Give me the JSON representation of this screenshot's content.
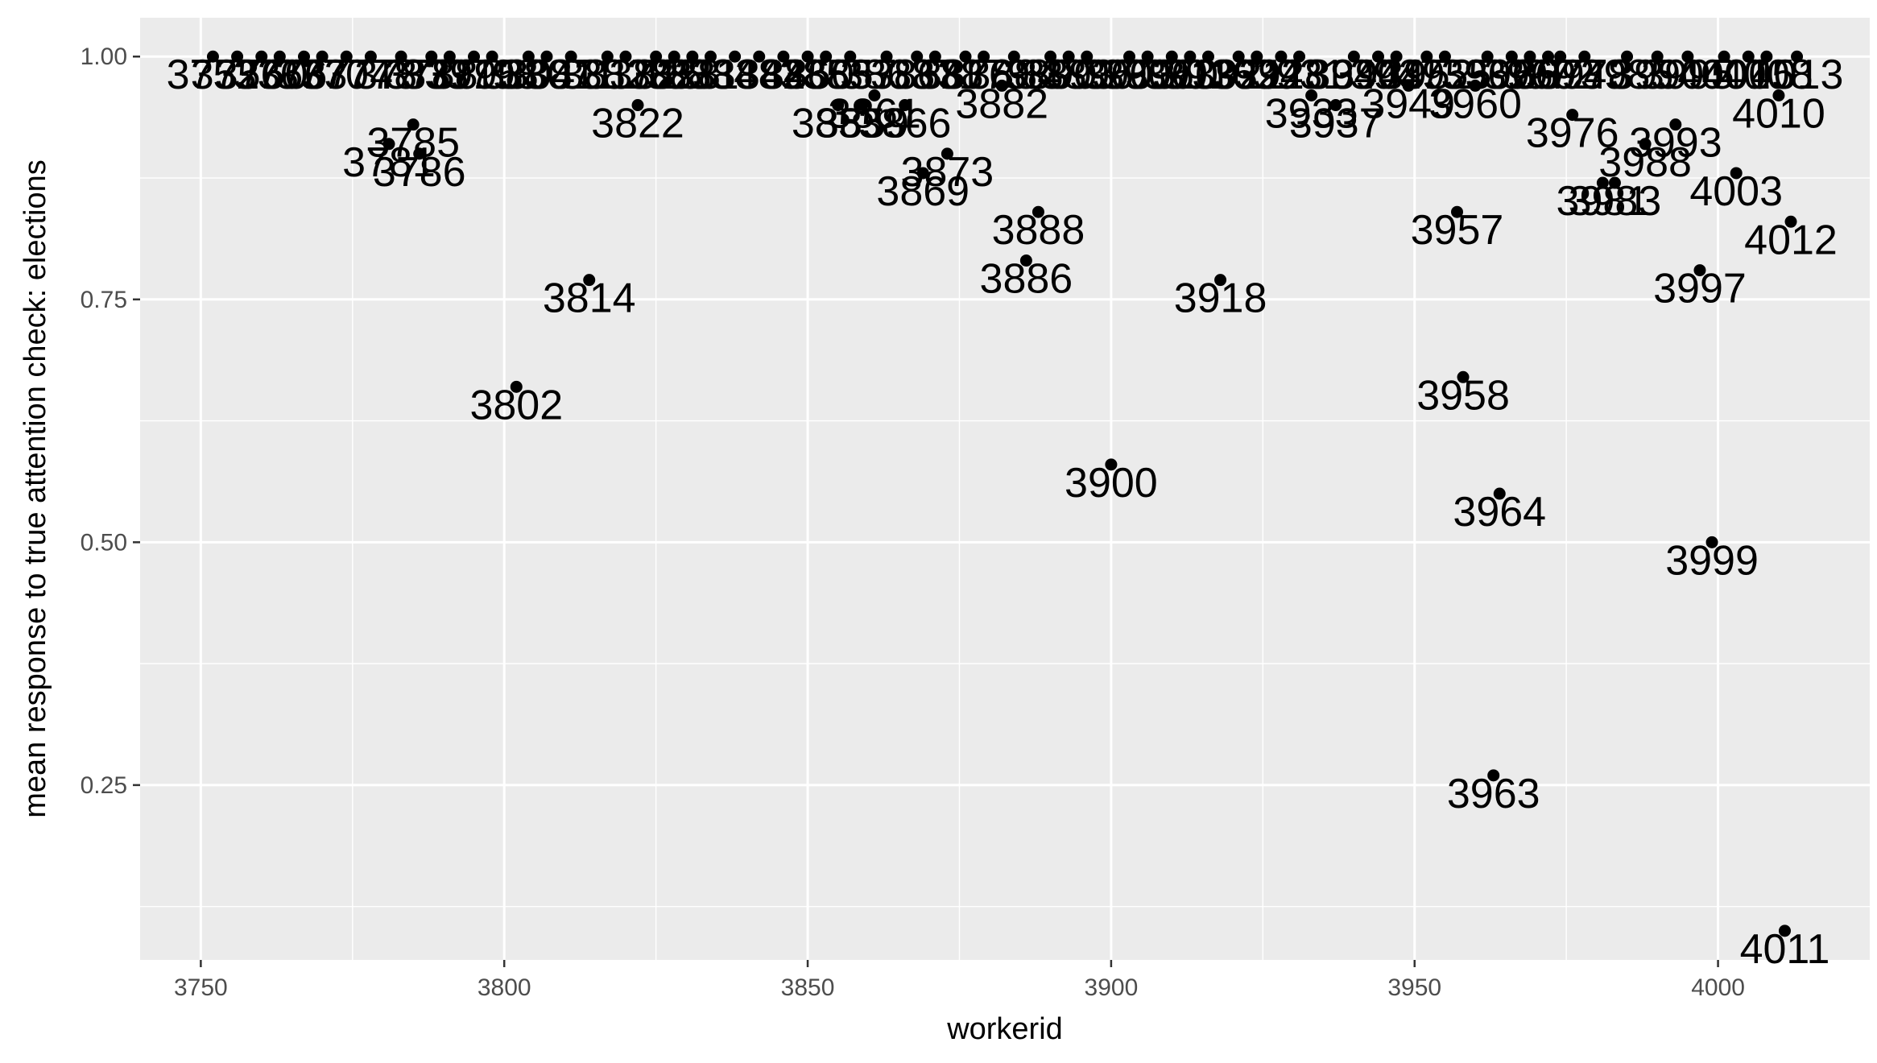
{
  "chart_data": {
    "type": "scatter",
    "title": "",
    "xlabel": "workerid",
    "ylabel": "mean response to true attention check:  elections",
    "xlim": [
      3740,
      4025
    ],
    "ylim": [
      0.07,
      1.04
    ],
    "x_ticks": [
      3750,
      3800,
      3850,
      3900,
      3950,
      4000
    ],
    "x_tick_labels": [
      "3750",
      "3800",
      "3850",
      "3900",
      "3950",
      "4000"
    ],
    "y_ticks": [
      0.25,
      0.5,
      0.75,
      1.0
    ],
    "y_tick_labels": [
      "0.25",
      "0.50",
      "0.75",
      "1.00"
    ],
    "grid": true,
    "point_color": "#000000",
    "panel_color": "#ebebeb",
    "points": [
      {
        "x": 4011,
        "y": 0.1,
        "label": "4011"
      },
      {
        "x": 3963,
        "y": 0.26,
        "label": "3963"
      },
      {
        "x": 3999,
        "y": 0.5,
        "label": "3999"
      },
      {
        "x": 3964,
        "y": 0.55,
        "label": "3964"
      },
      {
        "x": 3900,
        "y": 0.58,
        "label": "3900"
      },
      {
        "x": 3958,
        "y": 0.67,
        "label": "3958"
      },
      {
        "x": 3802,
        "y": 0.66,
        "label": "3802"
      },
      {
        "x": 3814,
        "y": 0.77,
        "label": "3814"
      },
      {
        "x": 3918,
        "y": 0.77,
        "label": "3918"
      },
      {
        "x": 3997,
        "y": 0.78,
        "label": "3997"
      },
      {
        "x": 3886,
        "y": 0.79,
        "label": "3886"
      },
      {
        "x": 4012,
        "y": 0.83,
        "label": "4012"
      },
      {
        "x": 3888,
        "y": 0.84,
        "label": "3888"
      },
      {
        "x": 3957,
        "y": 0.84,
        "label": "3957"
      },
      {
        "x": 4003,
        "y": 0.88,
        "label": "4003"
      },
      {
        "x": 3869,
        "y": 0.88,
        "label": "3869"
      },
      {
        "x": 3873,
        "y": 0.9,
        "label": "3873"
      },
      {
        "x": 3981,
        "y": 0.87,
        "label": "3981"
      },
      {
        "x": 3983,
        "y": 0.87,
        "label": "3983"
      },
      {
        "x": 3988,
        "y": 0.91,
        "label": "3988"
      },
      {
        "x": 3993,
        "y": 0.93,
        "label": "3993"
      },
      {
        "x": 3976,
        "y": 0.94,
        "label": "3976"
      },
      {
        "x": 4010,
        "y": 0.96,
        "label": "4010"
      },
      {
        "x": 3781,
        "y": 0.91,
        "label": "3781"
      },
      {
        "x": 3786,
        "y": 0.9,
        "label": "3786"
      },
      {
        "x": 3785,
        "y": 0.93,
        "label": "3785"
      },
      {
        "x": 3822,
        "y": 0.95,
        "label": "3822"
      },
      {
        "x": 3866,
        "y": 0.95,
        "label": "3866"
      },
      {
        "x": 3882,
        "y": 0.97,
        "label": "3882"
      },
      {
        "x": 3855,
        "y": 0.95,
        "label": "3855"
      },
      {
        "x": 3859,
        "y": 0.95,
        "label": "3859"
      },
      {
        "x": 3861,
        "y": 0.96,
        "label": "3861"
      },
      {
        "x": 3937,
        "y": 0.95,
        "label": "3937"
      },
      {
        "x": 3933,
        "y": 0.96,
        "label": "3933"
      },
      {
        "x": 3949,
        "y": 0.97,
        "label": "3949"
      },
      {
        "x": 3960,
        "y": 0.97,
        "label": "3960"
      },
      {
        "x": 3752,
        "y": 1.0,
        "label": "3752"
      },
      {
        "x": 3756,
        "y": 1.0,
        "label": "3756"
      },
      {
        "x": 3760,
        "y": 1.0,
        "label": "3760"
      },
      {
        "x": 3763,
        "y": 1.0,
        "label": "3763"
      },
      {
        "x": 3767,
        "y": 1.0,
        "label": "3767"
      },
      {
        "x": 3770,
        "y": 1.0,
        "label": "3770"
      },
      {
        "x": 3774,
        "y": 1.0,
        "label": "3774"
      },
      {
        "x": 3778,
        "y": 1.0,
        "label": "3778"
      },
      {
        "x": 3783,
        "y": 1.0,
        "label": "3783"
      },
      {
        "x": 3788,
        "y": 1.0,
        "label": "3788"
      },
      {
        "x": 3791,
        "y": 1.0,
        "label": "3791"
      },
      {
        "x": 3795,
        "y": 1.0,
        "label": "3795"
      },
      {
        "x": 3798,
        "y": 1.0,
        "label": "3798"
      },
      {
        "x": 3804,
        "y": 1.0,
        "label": "3804"
      },
      {
        "x": 3807,
        "y": 1.0,
        "label": "3807"
      },
      {
        "x": 3811,
        "y": 1.0,
        "label": "3811"
      },
      {
        "x": 3817,
        "y": 1.0,
        "label": "3817"
      },
      {
        "x": 3820,
        "y": 1.0,
        "label": "3820"
      },
      {
        "x": 3825,
        "y": 1.0,
        "label": "3825"
      },
      {
        "x": 3828,
        "y": 1.0,
        "label": "3828"
      },
      {
        "x": 3831,
        "y": 1.0,
        "label": "3831"
      },
      {
        "x": 3834,
        "y": 1.0,
        "label": "3834"
      },
      {
        "x": 3838,
        "y": 1.0,
        "label": "3838"
      },
      {
        "x": 3842,
        "y": 1.0,
        "label": "3842"
      },
      {
        "x": 3846,
        "y": 1.0,
        "label": "3846"
      },
      {
        "x": 3850,
        "y": 1.0,
        "label": "3850"
      },
      {
        "x": 3853,
        "y": 1.0,
        "label": "3853"
      },
      {
        "x": 3857,
        "y": 1.0,
        "label": "3857"
      },
      {
        "x": 3863,
        "y": 1.0,
        "label": "3863"
      },
      {
        "x": 3868,
        "y": 1.0,
        "label": "3868"
      },
      {
        "x": 3871,
        "y": 1.0,
        "label": "3871"
      },
      {
        "x": 3876,
        "y": 1.0,
        "label": "3876"
      },
      {
        "x": 3879,
        "y": 1.0,
        "label": "3879"
      },
      {
        "x": 3884,
        "y": 1.0,
        "label": "3884"
      },
      {
        "x": 3890,
        "y": 1.0,
        "label": "3890"
      },
      {
        "x": 3893,
        "y": 1.0,
        "label": "3893"
      },
      {
        "x": 3896,
        "y": 1.0,
        "label": "3896"
      },
      {
        "x": 3903,
        "y": 1.0,
        "label": "3903"
      },
      {
        "x": 3906,
        "y": 1.0,
        "label": "3906"
      },
      {
        "x": 3910,
        "y": 1.0,
        "label": "3910"
      },
      {
        "x": 3913,
        "y": 1.0,
        "label": "3913"
      },
      {
        "x": 3916,
        "y": 1.0,
        "label": "3916"
      },
      {
        "x": 3921,
        "y": 1.0,
        "label": "3921"
      },
      {
        "x": 3924,
        "y": 1.0,
        "label": "3924"
      },
      {
        "x": 3928,
        "y": 1.0,
        "label": "3928"
      },
      {
        "x": 3931,
        "y": 1.0,
        "label": "3931"
      },
      {
        "x": 3940,
        "y": 1.0,
        "label": "3940"
      },
      {
        "x": 3944,
        "y": 1.0,
        "label": "3944"
      },
      {
        "x": 3947,
        "y": 1.0,
        "label": "3947"
      },
      {
        "x": 3952,
        "y": 1.0,
        "label": "3952"
      },
      {
        "x": 3955,
        "y": 1.0,
        "label": "3955"
      },
      {
        "x": 3962,
        "y": 1.0,
        "label": "3962"
      },
      {
        "x": 3966,
        "y": 1.0,
        "label": "3966"
      },
      {
        "x": 3969,
        "y": 1.0,
        "label": "3969"
      },
      {
        "x": 3972,
        "y": 1.0,
        "label": "3972"
      },
      {
        "x": 3974,
        "y": 1.0,
        "label": "3974"
      },
      {
        "x": 3978,
        "y": 1.0,
        "label": "3978"
      },
      {
        "x": 3985,
        "y": 1.0,
        "label": "3985"
      },
      {
        "x": 3990,
        "y": 1.0,
        "label": "3990"
      },
      {
        "x": 3995,
        "y": 1.0,
        "label": "3995"
      },
      {
        "x": 4001,
        "y": 1.0,
        "label": "4001"
      },
      {
        "x": 4005,
        "y": 1.0,
        "label": "4005"
      },
      {
        "x": 4008,
        "y": 1.0,
        "label": "4008"
      },
      {
        "x": 4013,
        "y": 1.0,
        "label": "4013"
      }
    ]
  }
}
